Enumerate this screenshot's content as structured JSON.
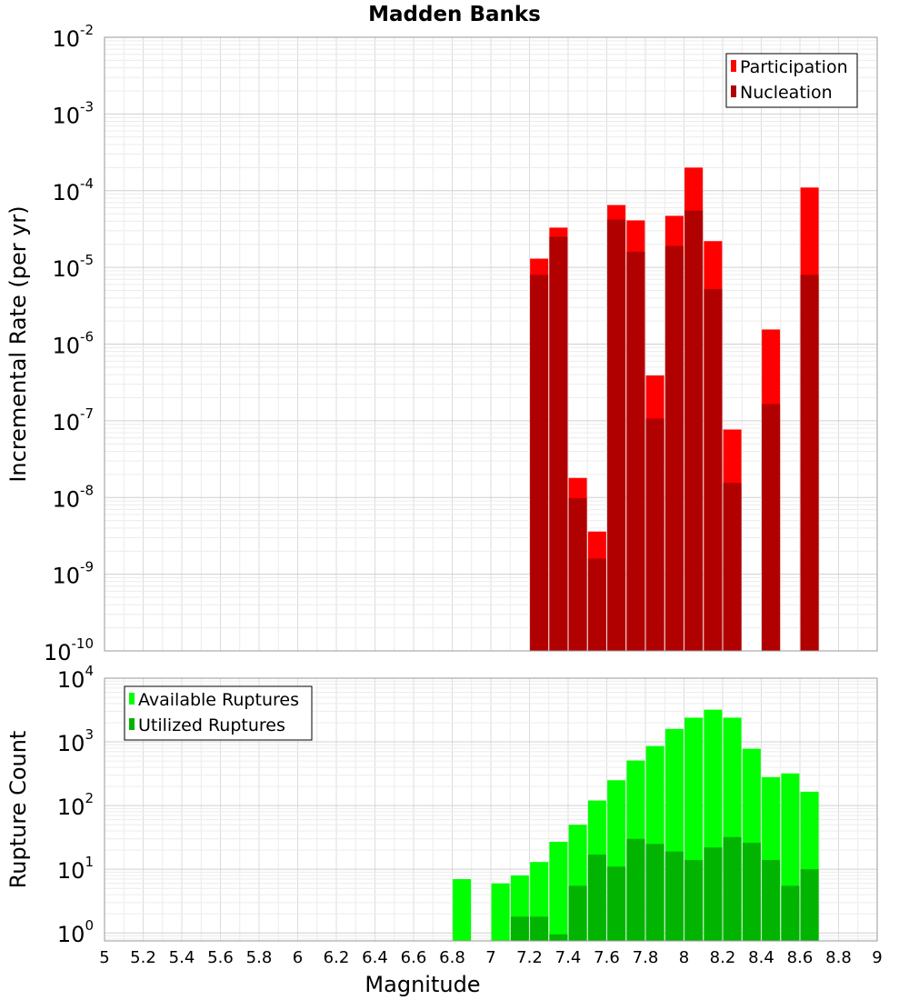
{
  "chart_data": [
    {
      "type": "bar",
      "title": "Madden Banks",
      "ylabel": "Incremental Rate (per yr)",
      "xlabel": "",
      "yscale": "log",
      "ylim": [
        1e-10,
        0.01
      ],
      "xlim": [
        5,
        9
      ],
      "ytick_exponents": [
        "-10",
        "-9",
        "-8",
        "-7",
        "-6",
        "-5",
        "-4",
        "-3",
        "-2"
      ],
      "grid": true,
      "legend_position": "top-right",
      "x": [
        7.25,
        7.35,
        7.45,
        7.55,
        7.65,
        7.75,
        7.85,
        7.95,
        8.05,
        8.15,
        8.25,
        8.45,
        8.65
      ],
      "series": [
        {
          "name": "Participation",
          "color": "#ff0000",
          "values": [
            1.3e-05,
            3.3e-05,
            1.8e-08,
            3.6e-09,
            6.5e-05,
            4.1e-05,
            3.9e-07,
            4.7e-05,
            0.0002,
            2.2e-05,
            7.7e-08,
            1.55e-06,
            0.00011
          ]
        },
        {
          "name": "Nucleation",
          "color": "#b00000",
          "values": [
            8e-06,
            2.5e-05,
            9.8e-09,
            1.6e-09,
            4.2e-05,
            1.6e-05,
            1.07e-07,
            1.9e-05,
            5.5e-05,
            5.2e-06,
            1.55e-08,
            1.65e-07,
            8e-06
          ]
        }
      ]
    },
    {
      "type": "bar",
      "title": "",
      "ylabel": "Rupture Count",
      "xlabel": "Magnitude",
      "yscale": "log",
      "ylim": [
        0.75,
        10000
      ],
      "xlim": [
        5,
        9
      ],
      "xticks": [
        "5",
        "5.2",
        "5.4",
        "5.6",
        "5.8",
        "6",
        "6.2",
        "6.4",
        "6.6",
        "6.8",
        "7",
        "7.2",
        "7.4",
        "7.6",
        "7.8",
        "8",
        "8.2",
        "8.4",
        "8.6",
        "8.8",
        "9"
      ],
      "ytick_exponents": [
        "0",
        "1",
        "2",
        "3",
        "4"
      ],
      "grid": true,
      "legend_position": "top-left",
      "x": [
        6.85,
        7.05,
        7.15,
        7.25,
        7.35,
        7.45,
        7.55,
        7.65,
        7.75,
        7.85,
        7.95,
        8.05,
        8.15,
        8.25,
        8.35,
        8.45,
        8.55,
        8.65
      ],
      "series": [
        {
          "name": "Available Ruptures",
          "color": "#00ff00",
          "values": [
            7,
            6,
            8,
            13,
            27,
            50,
            120,
            250,
            510,
            860,
            1600,
            2400,
            3200,
            2400,
            780,
            280,
            320,
            165
          ]
        },
        {
          "name": "Utilized Ruptures",
          "color": "#00b400",
          "values": [
            0,
            0,
            1.8,
            1.8,
            0.95,
            5.5,
            17,
            11,
            30,
            25,
            19,
            14,
            22,
            32,
            26,
            14,
            5.5,
            10
          ]
        }
      ]
    }
  ]
}
